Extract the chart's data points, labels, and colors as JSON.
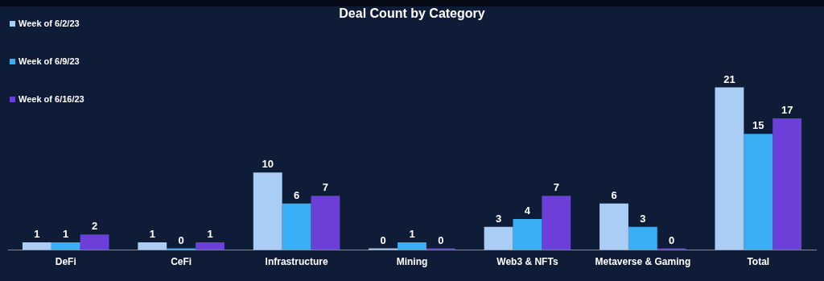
{
  "chart_data": {
    "type": "bar",
    "title": "Deal Count by Category",
    "categories": [
      "DeFi",
      "CeFi",
      "Infrastructure",
      "Mining",
      "Web3 & NFTs",
      "Metaverse & Gaming",
      "Total"
    ],
    "series": [
      {
        "name": "Week of 6/2/23",
        "color": "#a9cdf5",
        "values": [
          1,
          1,
          10,
          0,
          3,
          6,
          21
        ]
      },
      {
        "name": "Week of 6/9/23",
        "color": "#3aaef5",
        "values": [
          1,
          0,
          6,
          1,
          4,
          3,
          15
        ]
      },
      {
        "name": "Week of 6/16/23",
        "color": "#6b3fd8",
        "values": [
          2,
          1,
          7,
          0,
          7,
          0,
          17
        ]
      }
    ],
    "data_labels": true,
    "legend": "top left",
    "grid": false
  }
}
